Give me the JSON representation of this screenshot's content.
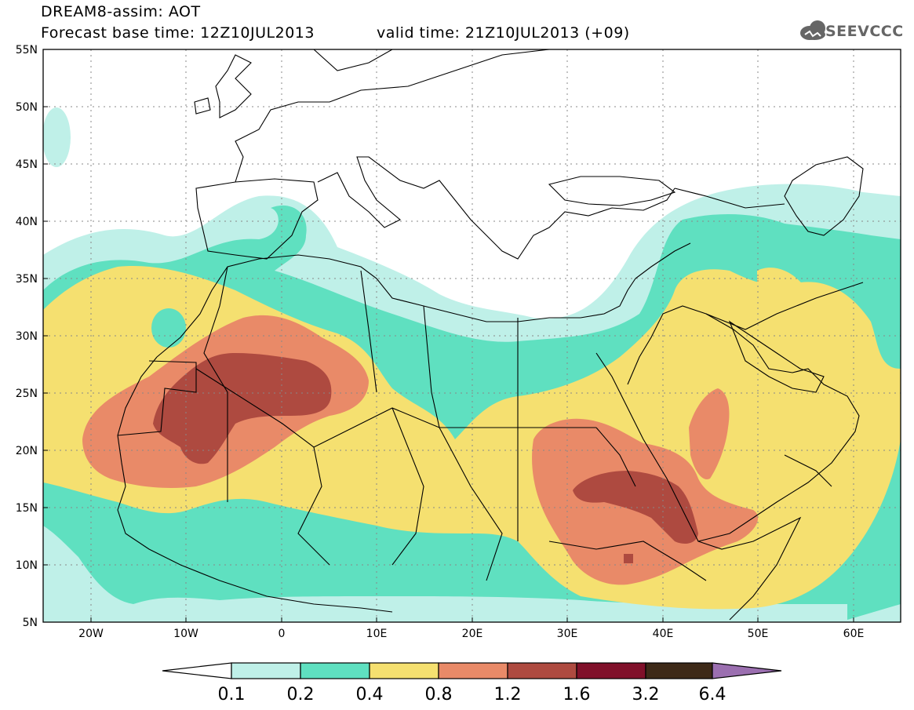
{
  "header": {
    "title_line1": "DREAM8-assim: AOT",
    "title_line2": "Forecast base time: 12Z10JUL2013",
    "valid_time": "valid time: 21Z10JUL2013 (+09)",
    "logo_text": "SEEVCCC"
  },
  "map": {
    "lat_labels": [
      "55N",
      "50N",
      "45N",
      "40N",
      "35N",
      "30N",
      "25N",
      "20N",
      "15N",
      "10N",
      "5N"
    ],
    "lon_labels": [
      "20W",
      "10W",
      "0",
      "10E",
      "20E",
      "30E",
      "40E",
      "50E",
      "60E"
    ]
  },
  "colorbar": {
    "levels": [
      "0.1",
      "0.2",
      "0.4",
      "0.8",
      "1.2",
      "1.6",
      "3.2",
      "6.4"
    ],
    "colors": {
      "below": "#ffffff",
      "c1": "#bff0e8",
      "c2": "#5fe0c0",
      "c3": "#f5e070",
      "c4": "#e98a68",
      "c5": "#ae4a40",
      "c6": "#80102a",
      "c7": "#3e2a18",
      "above": "#9b6fb0"
    }
  }
}
